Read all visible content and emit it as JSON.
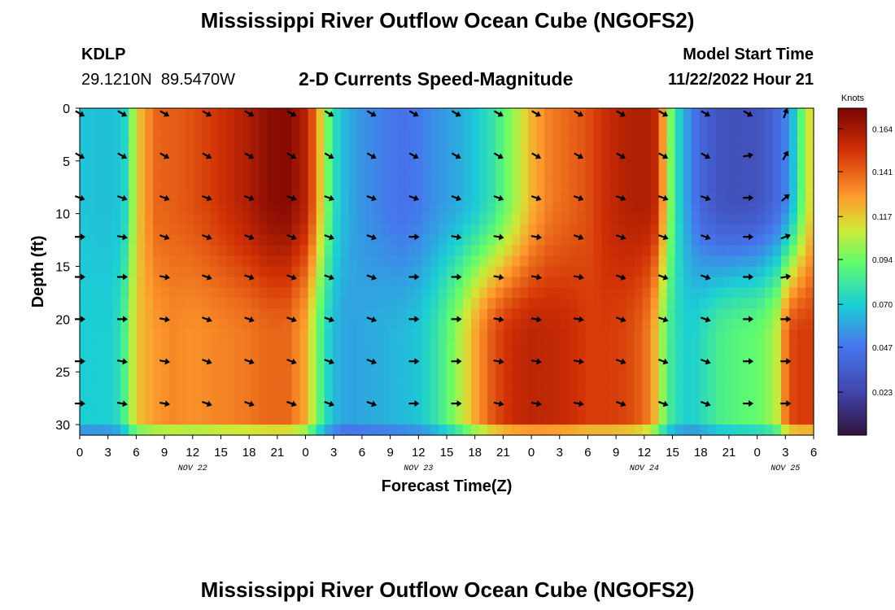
{
  "header": {
    "title": "Mississippi River Outflow Ocean Cube (NGOFS2)",
    "station_id": "KDLP",
    "coords_lat": "29.1210N",
    "coords_lon": "89.5470W",
    "subtitle": "2-D Currents Speed-Magnitude",
    "model_start_label": "Model Start Time",
    "model_start_value": "11/22/2022 Hour 21"
  },
  "footer": {
    "title_repeat": "Mississippi River Outflow Ocean Cube (NGOFS2)"
  },
  "chart_data": {
    "type": "heatmap",
    "title": "2-D Currents Speed-Magnitude",
    "xlabel": "Forecast Time(Z)",
    "ylabel": "Depth (ft)",
    "x_unit": "hours since 11/22 00Z",
    "xlim": [
      0,
      78
    ],
    "ylim": [
      0,
      31
    ],
    "y_inverted": true,
    "x_tick_values": [
      0,
      3,
      6,
      9,
      12,
      15,
      18,
      21,
      24,
      27,
      30,
      33,
      36,
      39,
      42,
      45,
      48,
      51,
      54,
      57,
      60,
      63,
      66,
      69,
      72,
      75,
      78
    ],
    "x_tick_labels": [
      "0",
      "3",
      "6",
      "9",
      "12",
      "15",
      "18",
      "21",
      "0",
      "3",
      "6",
      "9",
      "12",
      "15",
      "18",
      "21",
      "0",
      "3",
      "6",
      "9",
      "12",
      "15",
      "18",
      "21",
      "0",
      "3",
      "6"
    ],
    "y_ticks": [
      0,
      5,
      10,
      15,
      20,
      25,
      30
    ],
    "date_labels": [
      {
        "x": 12,
        "text": "NOV 22"
      },
      {
        "x": 36,
        "text": "NOV 23"
      },
      {
        "x": 60,
        "text": "NOV 24"
      },
      {
        "x": 75,
        "text": "NOV 25"
      }
    ],
    "colorbar": {
      "unit": "Knots",
      "min": 0.0,
      "max": 0.175,
      "ticks": [
        0.164,
        0.141,
        0.117,
        0.094,
        0.07,
        0.047,
        0.023
      ]
    },
    "speed_profile": {
      "times": [
        0,
        2,
        3,
        4,
        5,
        6,
        8,
        10,
        12,
        14,
        16,
        18,
        20,
        22,
        24,
        24.7,
        25.7,
        26.7,
        27.5,
        28.5,
        30,
        32,
        34,
        36,
        38,
        40,
        42,
        44,
        46,
        48,
        50,
        52,
        54,
        56,
        58,
        60,
        61,
        61.7,
        62.3,
        63,
        63.7,
        64.3,
        65,
        66,
        68,
        70,
        72,
        74,
        75,
        76,
        77,
        78
      ],
      "surface_knots": [
        0.068,
        0.066,
        0.066,
        0.067,
        0.075,
        0.115,
        0.14,
        0.142,
        0.145,
        0.15,
        0.156,
        0.162,
        0.17,
        0.172,
        0.16,
        0.145,
        0.115,
        0.085,
        0.07,
        0.062,
        0.055,
        0.05,
        0.045,
        0.048,
        0.055,
        0.06,
        0.068,
        0.08,
        0.1,
        0.122,
        0.135,
        0.14,
        0.145,
        0.155,
        0.16,
        0.162,
        0.16,
        0.14,
        0.115,
        0.09,
        0.072,
        0.062,
        0.05,
        0.04,
        0.03,
        0.028,
        0.03,
        0.04,
        0.05,
        0.07,
        0.1,
        0.12
      ],
      "bottom_knots": [
        0.07,
        0.07,
        0.07,
        0.075,
        0.09,
        0.118,
        0.128,
        0.132,
        0.13,
        0.132,
        0.134,
        0.136,
        0.14,
        0.14,
        0.125,
        0.108,
        0.085,
        0.068,
        0.062,
        0.058,
        0.06,
        0.062,
        0.064,
        0.068,
        0.08,
        0.1,
        0.125,
        0.145,
        0.155,
        0.158,
        0.157,
        0.155,
        0.15,
        0.15,
        0.148,
        0.14,
        0.125,
        0.108,
        0.09,
        0.08,
        0.075,
        0.072,
        0.07,
        0.075,
        0.085,
        0.09,
        0.092,
        0.105,
        0.135,
        0.15,
        0.15,
        0.15
      ]
    },
    "vector_times": [
      0,
      4.5,
      9,
      13.5,
      18,
      22.5,
      26.5,
      31,
      35.5,
      40,
      44.5,
      48.5,
      53,
      57.5,
      62,
      66.5,
      71,
      75
    ],
    "vector_depths": [
      0.5,
      4.5,
      8.5,
      12.2,
      16,
      20,
      24,
      28
    ],
    "vector_direction_deg": [
      [
        300,
        300,
        300,
        300,
        300,
        300,
        300,
        300,
        300,
        300,
        300,
        300,
        300,
        300,
        300,
        300,
        300,
        200
      ],
      [
        300,
        300,
        300,
        300,
        300,
        300,
        300,
        300,
        300,
        300,
        300,
        300,
        300,
        300,
        300,
        300,
        260,
        210
      ],
      [
        290,
        290,
        290,
        290,
        290,
        290,
        290,
        290,
        290,
        290,
        290,
        290,
        290,
        290,
        290,
        290,
        270,
        230
      ],
      [
        270,
        280,
        290,
        290,
        290,
        290,
        290,
        290,
        270,
        280,
        280,
        280,
        290,
        290,
        290,
        290,
        270,
        250
      ],
      [
        270,
        270,
        280,
        290,
        290,
        290,
        290,
        290,
        270,
        270,
        280,
        280,
        280,
        290,
        290,
        290,
        270,
        260
      ],
      [
        270,
        270,
        280,
        290,
        290,
        290,
        290,
        290,
        270,
        270,
        280,
        280,
        280,
        290,
        290,
        290,
        270,
        270
      ],
      [
        270,
        280,
        280,
        290,
        290,
        290,
        290,
        290,
        270,
        270,
        280,
        280,
        280,
        290,
        290,
        290,
        270,
        270
      ],
      [
        270,
        280,
        280,
        290,
        290,
        290,
        290,
        290,
        270,
        270,
        280,
        280,
        280,
        290,
        290,
        290,
        270,
        270
      ]
    ]
  }
}
